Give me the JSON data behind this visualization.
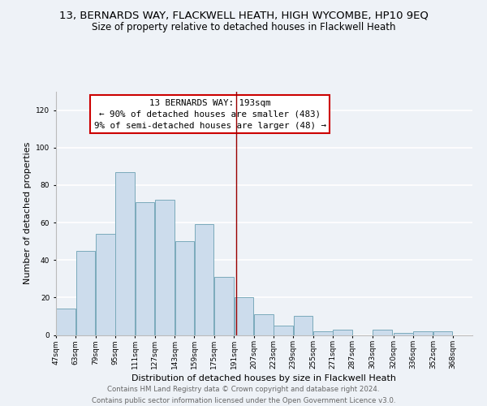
{
  "title": "13, BERNARDS WAY, FLACKWELL HEATH, HIGH WYCOMBE, HP10 9EQ",
  "subtitle": "Size of property relative to detached houses in Flackwell Heath",
  "xlabel": "Distribution of detached houses by size in Flackwell Heath",
  "ylabel": "Number of detached properties",
  "footer_line1": "Contains HM Land Registry data © Crown copyright and database right 2024.",
  "footer_line2": "Contains public sector information licensed under the Open Government Licence v3.0.",
  "annotation_title": "13 BERNARDS WAY: 193sqm",
  "annotation_line1": "← 90% of detached houses are smaller (483)",
  "annotation_line2": "9% of semi-detached houses are larger (48) →",
  "bar_left_edges": [
    47,
    63,
    79,
    95,
    111,
    127,
    143,
    159,
    175,
    191,
    207,
    223,
    239,
    255,
    271,
    287,
    303,
    320,
    336,
    352
  ],
  "bar_widths": [
    16,
    16,
    16,
    16,
    16,
    16,
    16,
    16,
    16,
    16,
    16,
    16,
    16,
    16,
    16,
    16,
    16,
    16,
    16,
    16
  ],
  "bar_heights": [
    14,
    45,
    54,
    87,
    71,
    72,
    50,
    59,
    31,
    20,
    11,
    5,
    10,
    2,
    3,
    0,
    3,
    1,
    2,
    2
  ],
  "bar_color": "#ccdcec",
  "bar_edgecolor": "#7aaabb",
  "vline_x": 193,
  "vline_color": "#990000",
  "xlim": [
    47,
    384
  ],
  "ylim": [
    0,
    130
  ],
  "yticks": [
    0,
    20,
    40,
    60,
    80,
    100,
    120
  ],
  "xtick_labels": [
    "47sqm",
    "63sqm",
    "79sqm",
    "95sqm",
    "111sqm",
    "127sqm",
    "143sqm",
    "159sqm",
    "175sqm",
    "191sqm",
    "207sqm",
    "223sqm",
    "239sqm",
    "255sqm",
    "271sqm",
    "287sqm",
    "303sqm",
    "320sqm",
    "336sqm",
    "352sqm",
    "368sqm"
  ],
  "xtick_positions": [
    47,
    63,
    79,
    95,
    111,
    127,
    143,
    159,
    175,
    191,
    207,
    223,
    239,
    255,
    271,
    287,
    303,
    320,
    336,
    352,
    368
  ],
  "annotation_box_color": "#ffffff",
  "annotation_box_edgecolor": "#cc0000",
  "background_color": "#eef2f7",
  "grid_color": "#ffffff",
  "title_fontsize": 9.5,
  "subtitle_fontsize": 8.5,
  "axis_label_fontsize": 8,
  "tick_fontsize": 6.5,
  "annotation_fontsize": 7.8,
  "footer_fontsize": 6.2
}
